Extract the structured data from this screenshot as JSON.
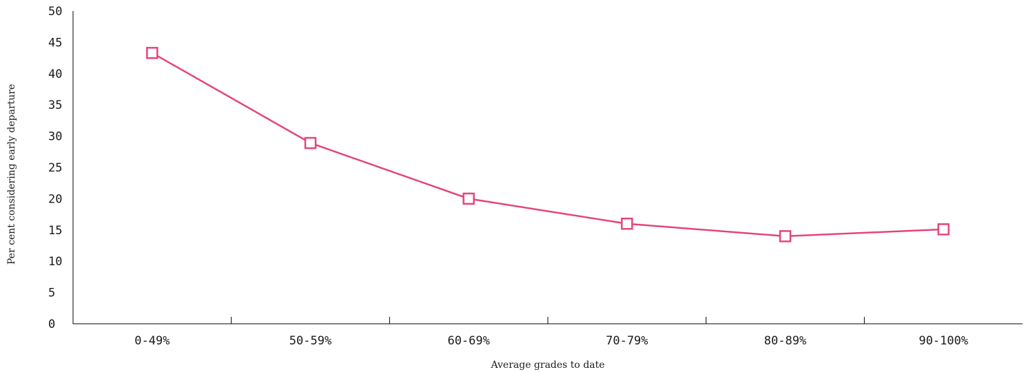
{
  "chart_data": {
    "type": "line",
    "categories": [
      "0-49%",
      "50-59%",
      "60-69%",
      "70-79%",
      "80-89%",
      "90-100%"
    ],
    "series": [
      {
        "values": [
          43.3,
          28.9,
          20,
          16,
          14,
          15.1
        ]
      }
    ],
    "xlabel": "Average grades to date",
    "ylabel": "Per cent considering early departure",
    "ylim": [
      0,
      50
    ],
    "yticks": [
      "0",
      "5",
      "10",
      "15",
      "20",
      "25",
      "30",
      "35",
      "40",
      "45",
      "50"
    ],
    "grid": false,
    "line_color": "#e5447a",
    "marker": "open-square"
  }
}
